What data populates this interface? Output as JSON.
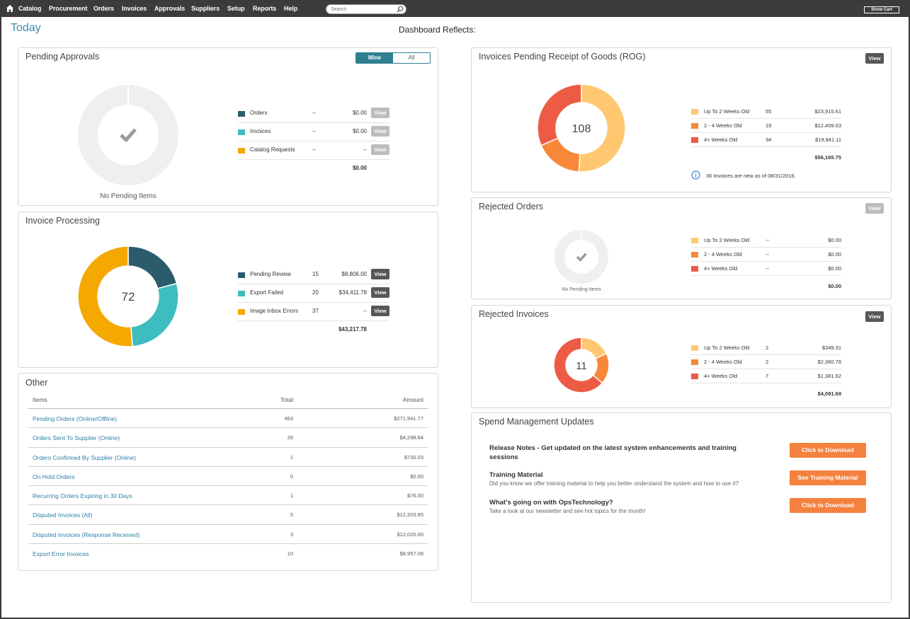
{
  "nav": {
    "items": [
      "Catalog",
      "Procurement",
      "Orders",
      "Invoices",
      "Approvals",
      "Suppliers",
      "Setup",
      "Reports",
      "Help"
    ],
    "search_placeholder": "Search",
    "show_cart": "Show Cart"
  },
  "header": {
    "today": "Today",
    "reflects": "Dashboard Reflects:"
  },
  "pending_approvals": {
    "title": "Pending Approvals",
    "toggle": {
      "mine": "Mine",
      "all": "All"
    },
    "empty_label": "No Pending Items",
    "rows": [
      {
        "label": "Orders",
        "count": "--",
        "amount": "$0.00",
        "color": "#2a5c6b"
      },
      {
        "label": "Invoices",
        "count": "--",
        "amount": "$0.00",
        "color": "#3dbdbf"
      },
      {
        "label": "Catalog Requests",
        "count": "--",
        "amount": "--",
        "color": "#f5a800"
      }
    ],
    "total": "$0.00",
    "view_label": "View"
  },
  "invoice_processing": {
    "title": "Invoice Processing",
    "center": "72",
    "rows": [
      {
        "label": "Pending Review",
        "count": "15",
        "amount": "$8,806.00",
        "color": "#2a5c6b",
        "value": 15
      },
      {
        "label": "Export Failed",
        "count": "20",
        "amount": "$34,411.78",
        "color": "#3dbdbf",
        "value": 20
      },
      {
        "label": "Image Inbox Errors",
        "count": "37",
        "amount": "--",
        "color": "#f5a800",
        "value": 37
      }
    ],
    "total": "$43,217.78",
    "view_label": "View"
  },
  "other": {
    "title": "Other",
    "headers": {
      "items": "Items",
      "total": "Total",
      "amount": "Amount"
    },
    "rows": [
      {
        "item": "Pending Orders (Online/Offline)",
        "total": "463",
        "amount": "$271,941.77"
      },
      {
        "item": "Orders Sent To Supplier (Online)",
        "total": "26",
        "amount": "$4,298.84"
      },
      {
        "item": "Orders Confirmed By Supplier (Online)",
        "total": "1",
        "amount": "$730.03"
      },
      {
        "item": "On Hold Orders",
        "total": "0",
        "amount": "$0.00"
      },
      {
        "item": "Recurring Orders Expiring in 30 Days",
        "total": "1",
        "amount": "$76.00"
      },
      {
        "item": "Disputed Invoices (All)",
        "total": "5",
        "amount": "$12,203.85"
      },
      {
        "item": "Disputed Invoices (Response Received)",
        "total": "3",
        "amount": "$12,020.00"
      },
      {
        "item": "Export Error Invoices",
        "total": "10",
        "amount": "$8,957.08"
      }
    ]
  },
  "rog": {
    "title": "Invoices Pending Receipt of Goods (ROG)",
    "center": "108",
    "view_label": "View",
    "rows": [
      {
        "label": "Up To 2 Weeks Old",
        "count": "55",
        "amount": "$23,915.61",
        "color": "#ffc870",
        "value": 55
      },
      {
        "label": "2 - 4 Weeks Old",
        "count": "19",
        "amount": "$12,409.03",
        "color": "#f7883a",
        "value": 19
      },
      {
        "label": "4+ Weeks Old",
        "count": "34",
        "amount": "$19,841.11",
        "color": "#ed5b45",
        "value": 34
      }
    ],
    "total": "$56,165.75",
    "info": "36 Invoices are new as of 08/31/2016."
  },
  "rejected_orders": {
    "title": "Rejected Orders",
    "view_label": "View",
    "empty_label": "No Pending Items",
    "rows": [
      {
        "label": "Up To 2 Weeks Old",
        "count": "--",
        "amount": "$0.00",
        "color": "#ffc870"
      },
      {
        "label": "2 - 4 Weeks Old",
        "count": "--",
        "amount": "$0.00",
        "color": "#f7883a"
      },
      {
        "label": "4+ Weeks Old",
        "count": "--",
        "amount": "$0.00",
        "color": "#ed5b45"
      }
    ],
    "total": "$0.00"
  },
  "rejected_invoices": {
    "title": "Rejected Invoices",
    "center": "11",
    "view_label": "View",
    "rows": [
      {
        "label": "Up To 2 Weeks Old",
        "count": "2",
        "amount": "$349.31",
        "color": "#ffc870",
        "value": 2
      },
      {
        "label": "2 - 4 Weeks Old",
        "count": "2",
        "amount": "$2,360.76",
        "color": "#f7883a",
        "value": 2
      },
      {
        "label": "4+ Weeks Old",
        "count": "7",
        "amount": "$1,381.62",
        "color": "#ed5b45",
        "value": 7
      }
    ],
    "total": "$4,091.69"
  },
  "spend": {
    "title": "Spend Management Updates",
    "items": [
      {
        "title": "Release Notes - Get updated on the latest system enhancements and training sessions",
        "desc": "",
        "button": "Click to Download"
      },
      {
        "title": "Training Material",
        "desc": "Did you know we offer training material to help you better understand the system and how to use it?",
        "button": "See Training Material"
      },
      {
        "title": "What's going on with OpsTechnology?",
        "desc": "Take a look at our newsletter and see hot topics for the month!",
        "button": "Click to Download"
      }
    ]
  }
}
